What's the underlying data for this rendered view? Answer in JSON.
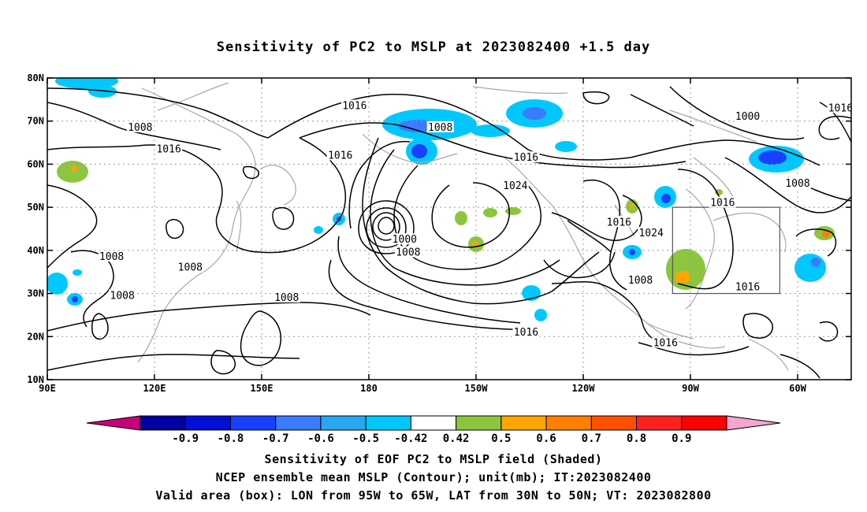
{
  "title": "Sensitivity of PC2 to MSLP at 2023082400 +1.5 day",
  "lat_labels": [
    "80N",
    "70N",
    "60N",
    "50N",
    "40N",
    "30N",
    "20N",
    "10N"
  ],
  "lat_values": [
    80,
    70,
    60,
    50,
    40,
    30,
    20,
    10
  ],
  "lon_labels": [
    "90E",
    "120E",
    "150E",
    "180",
    "150W",
    "120W",
    "90W",
    "60W"
  ],
  "lon_values": [
    90,
    120,
    150,
    180,
    210,
    240,
    270,
    300
  ],
  "map_extent": {
    "lon_min": 90,
    "lon_max": 315,
    "lat_min": 10,
    "lat_max": 80
  },
  "valid_box": {
    "lon_min": 265,
    "lon_max": 295,
    "lat_min": 30,
    "lat_max": 50
  },
  "contour_labels": [
    {
      "text": "1016",
      "lon": 176,
      "lat": 73.5
    },
    {
      "text": "1008",
      "lon": 116,
      "lat": 68.5
    },
    {
      "text": "1016",
      "lon": 124,
      "lat": 63.5
    },
    {
      "text": "1008",
      "lon": 108,
      "lat": 38.5
    },
    {
      "text": "1008",
      "lon": 130,
      "lat": 36
    },
    {
      "text": "1008",
      "lon": 111,
      "lat": 29.5
    },
    {
      "text": "1008",
      "lon": 157,
      "lat": 29
    },
    {
      "text": "1016",
      "lon": 172,
      "lat": 62
    },
    {
      "text": "1008",
      "lon": 200,
      "lat": 68.5
    },
    {
      "text": "1016",
      "lon": 224,
      "lat": 61.5
    },
    {
      "text": "1024",
      "lon": 221,
      "lat": 55
    },
    {
      "text": "1000",
      "lon": 190,
      "lat": 42.5
    },
    {
      "text": "1008",
      "lon": 191,
      "lat": 39.5
    },
    {
      "text": "1016",
      "lon": 250,
      "lat": 46.5
    },
    {
      "text": "1024",
      "lon": 259,
      "lat": 44
    },
    {
      "text": "1008",
      "lon": 256,
      "lat": 33
    },
    {
      "text": "1016",
      "lon": 224,
      "lat": 21
    },
    {
      "text": "1016",
      "lon": 263,
      "lat": 18.5
    },
    {
      "text": "1000",
      "lon": 286,
      "lat": 71
    },
    {
      "text": "1016",
      "lon": 312,
      "lat": 73
    },
    {
      "text": "1008",
      "lon": 300,
      "lat": 55.5
    },
    {
      "text": "1016",
      "lon": 279,
      "lat": 51
    },
    {
      "text": "1016",
      "lon": 286,
      "lat": 31.5
    }
  ],
  "colorbar": {
    "colors": [
      "#c8007a",
      "#0000a0",
      "#0010d8",
      "#1a40ff",
      "#3a7bff",
      "#2aa6f0",
      "#00c8ff",
      "#ffffff",
      "#8cc63f",
      "#ffa500",
      "#ff8000",
      "#ff4f00",
      "#ff2020",
      "#ff0000",
      "#f4a6d0"
    ],
    "labels": [
      "-0.9",
      "-0.8",
      "-0.7",
      "-0.6",
      "-0.5",
      "-0.42",
      "0.42",
      "0.5",
      "0.6",
      "0.7",
      "0.8",
      "0.9"
    ]
  },
  "captions": {
    "line1": "Sensitivity of EOF PC2 to MSLP field (Shaded)",
    "line2": "NCEP ensemble mean MSLP (Contour); unit(mb); IT:2023082400",
    "line3": "Valid area (box): LON from 95W to 65W, LAT from 30N to 50N; VT: 2023082800"
  }
}
